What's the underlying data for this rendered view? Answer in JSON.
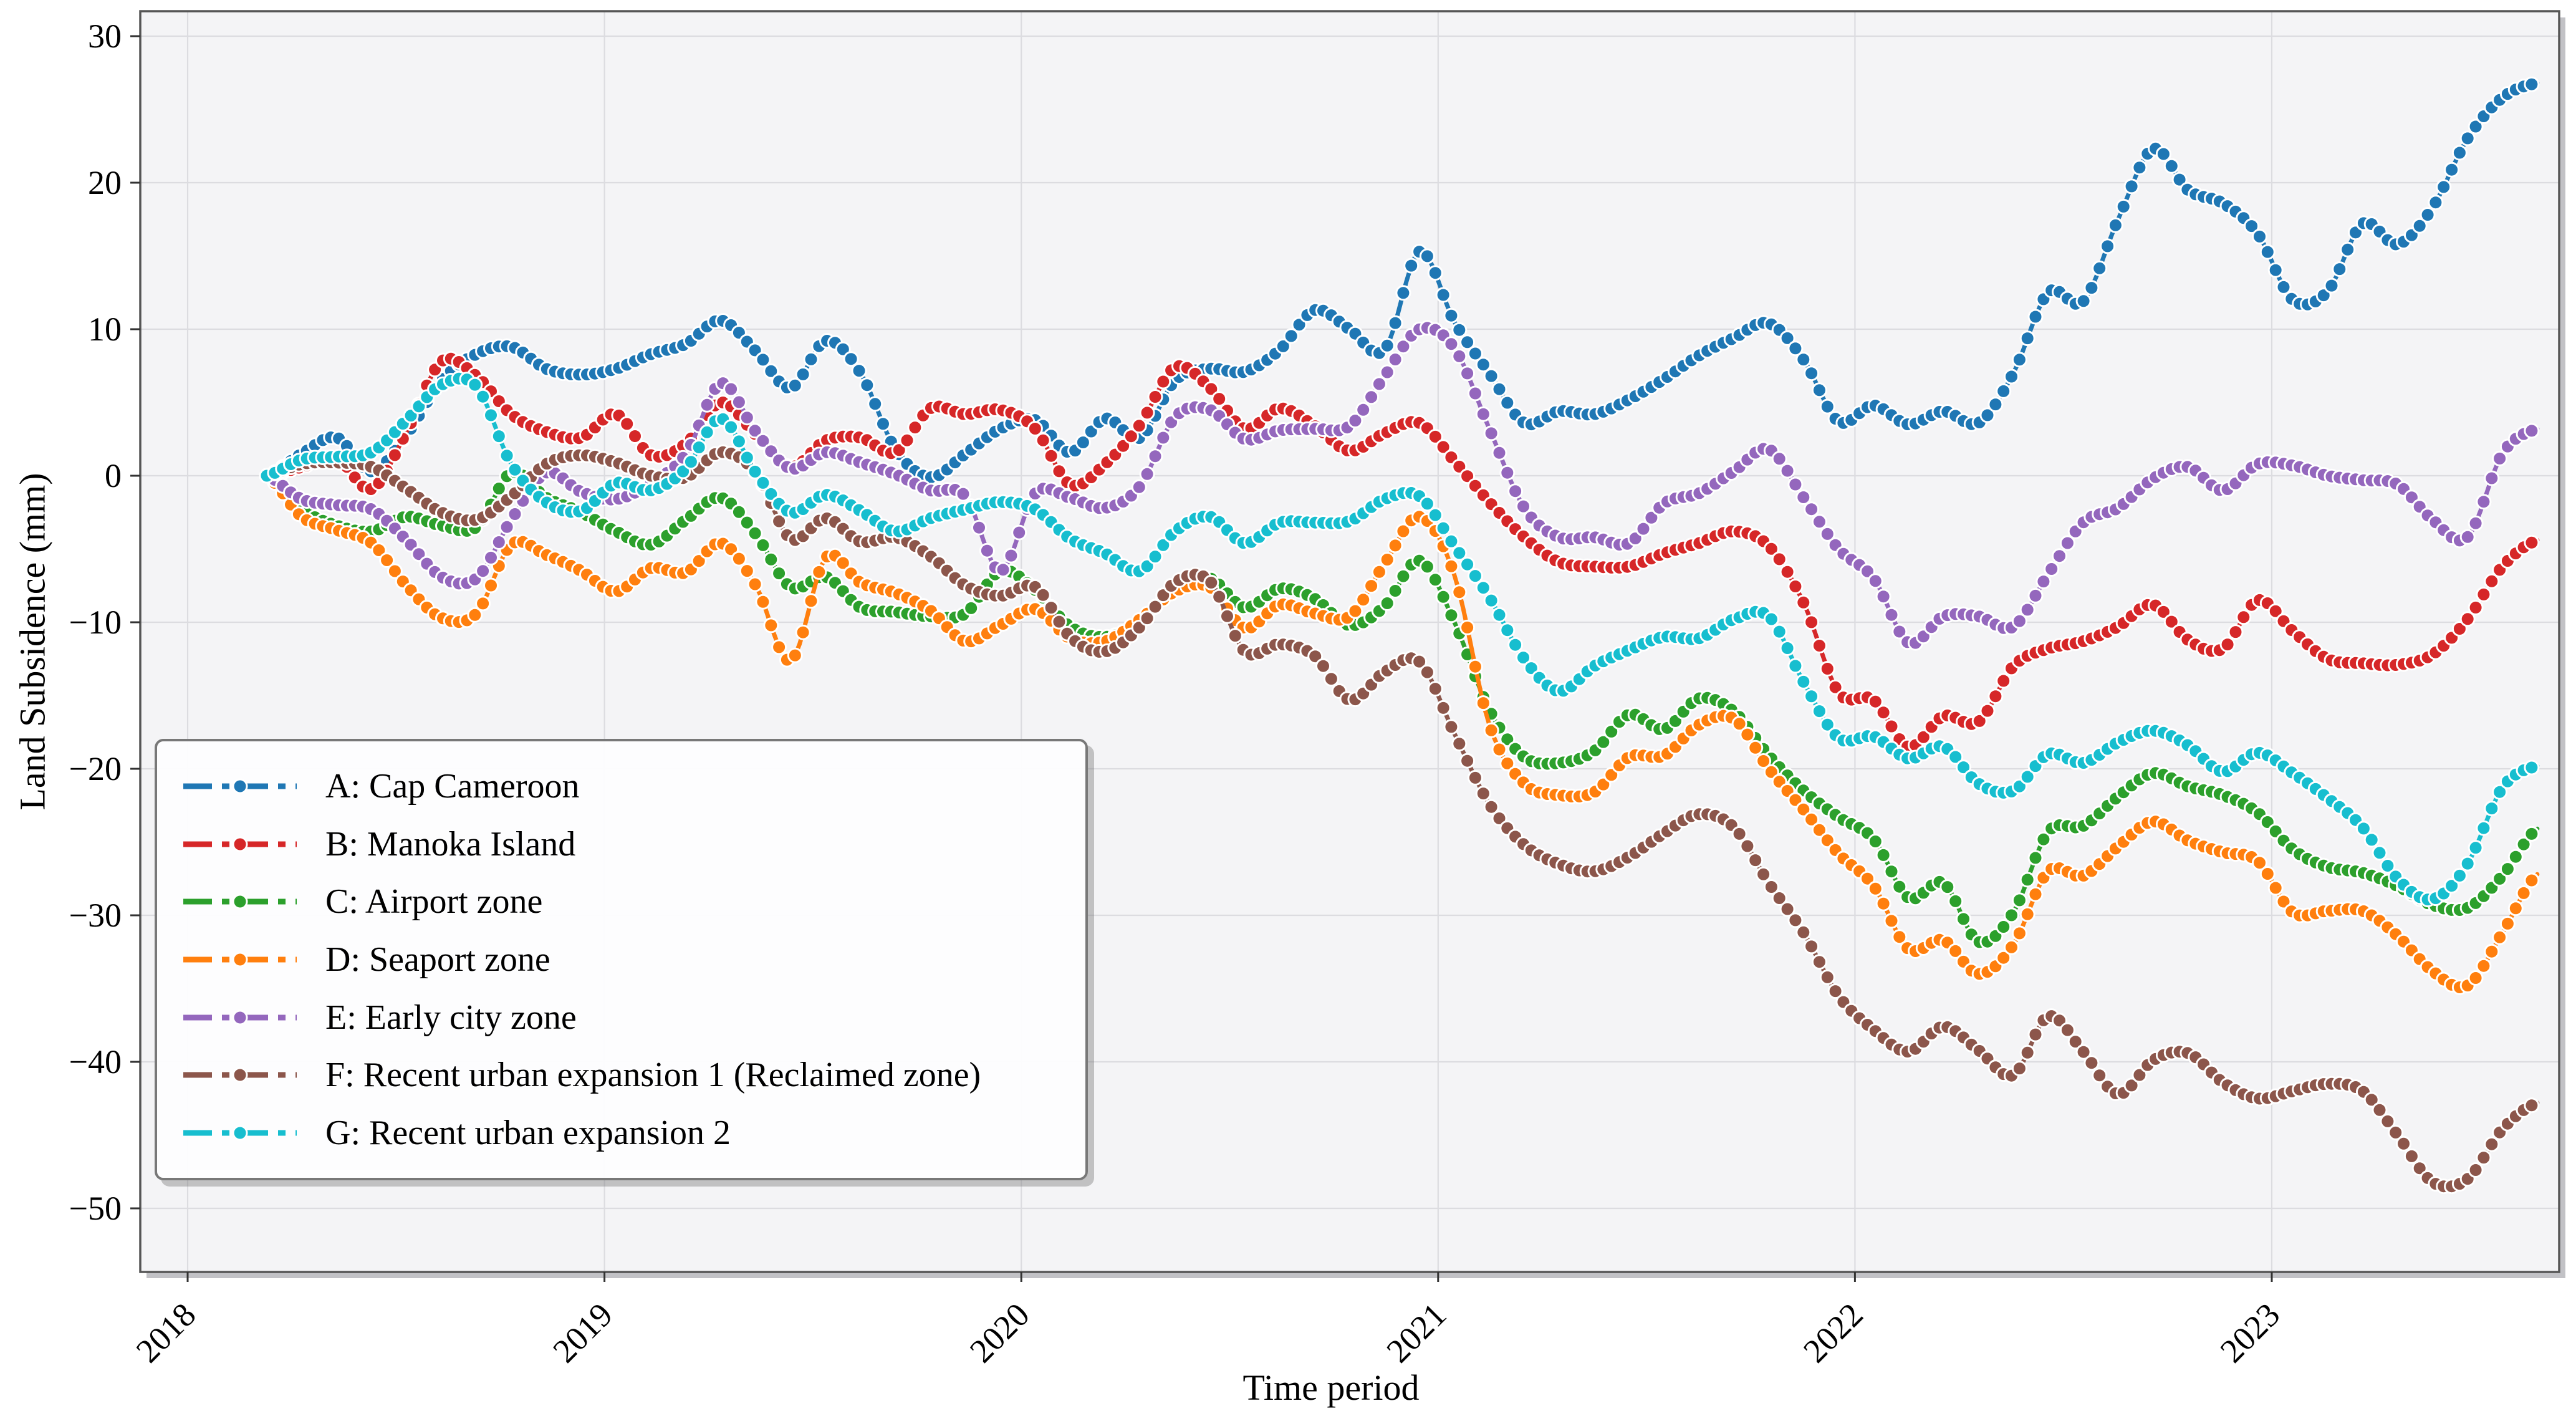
{
  "figure": {
    "bg": "#ffffff",
    "plot_bg": "#f4f4f6",
    "grid_color": "#dcdce0",
    "spine_color": "#565656",
    "shadow_color": "#c2c2c6",
    "tick_color": "#333333"
  },
  "chart_data": {
    "type": "line",
    "title": "",
    "xlabel": "Time period",
    "ylabel": "Land Subsidence (mm)",
    "x_ticks": [
      2018,
      2019,
      2020,
      2021,
      2022,
      2023
    ],
    "y_ticks": [
      30,
      20,
      10,
      0,
      -10,
      -20,
      -30,
      -40,
      -50
    ],
    "xlim": [
      2017.89,
      2023.69
    ],
    "ylim": [
      -54.3,
      31.7
    ],
    "grid": true,
    "legend_position": "lower left",
    "marker": "circle",
    "t_start": 2018.19,
    "t_step": 0.0838,
    "marker_t_step": 0.0192,
    "series": [
      {
        "id": "A",
        "label": "A: Cap Cameroon",
        "color": "#1f77b4",
        "values": [
          0,
          1.5,
          2.6,
          0.3,
          2.8,
          6.5,
          8.3,
          8.8,
          7.3,
          6.9,
          7.3,
          8.3,
          9.0,
          10.6,
          8.5,
          6.0,
          9.2,
          7.0,
          1.8,
          -0.1,
          1.5,
          3.2,
          3.8,
          1.6,
          3.9,
          2.6,
          6.5,
          7.3,
          7.1,
          8.6,
          11.3,
          10.0,
          8.6,
          15.3,
          10.5,
          7.0,
          3.6,
          4.4,
          4.2,
          5.2,
          6.6,
          8.2,
          9.4,
          10.4,
          7.9,
          3.7,
          4.8,
          3.5,
          4.4,
          3.6,
          7.0,
          12.5,
          11.9,
          17.5,
          22.3,
          19.5,
          18.6,
          16.5,
          12.0,
          12.6,
          17.2,
          15.8,
          18.3,
          23.0,
          25.8,
          26.8
        ]
      },
      {
        "id": "B",
        "label": "B: Manoka Island",
        "color": "#d62728",
        "values": [
          0,
          0.6,
          1.2,
          -0.9,
          3.0,
          7.8,
          6.8,
          4.2,
          3.0,
          2.6,
          4.2,
          1.4,
          2.2,
          5.0,
          2.8,
          0.6,
          2.4,
          2.6,
          1.6,
          4.6,
          4.2,
          4.5,
          3.2,
          -0.6,
          0.8,
          3.5,
          7.4,
          6.0,
          3.2,
          4.6,
          3.4,
          1.7,
          2.9,
          3.6,
          1.0,
          -1.8,
          -4.2,
          -5.9,
          -6.2,
          -6.2,
          -5.3,
          -4.6,
          -3.8,
          -4.8,
          -8.7,
          -14.8,
          -15.3,
          -18.5,
          -16.4,
          -16.8,
          -13.0,
          -11.8,
          -11.3,
          -10.3,
          -8.8,
          -11.2,
          -11.8,
          -8.5,
          -10.6,
          -12.5,
          -12.8,
          -12.9,
          -12.2,
          -9.8,
          -6.2,
          -4.4
        ]
      },
      {
        "id": "C",
        "label": "C: Airport zone",
        "color": "#2ca02c",
        "values": [
          0,
          -2.3,
          -3.4,
          -3.8,
          -2.8,
          -3.4,
          -3.5,
          0.2,
          -1.5,
          -2.5,
          -3.8,
          -4.7,
          -3.0,
          -1.5,
          -4.0,
          -7.6,
          -6.9,
          -9.0,
          -9.3,
          -9.6,
          -9.4,
          -6.5,
          -7.8,
          -10.3,
          -11.0,
          -10.0,
          -7.6,
          -7.0,
          -9.0,
          -7.7,
          -8.4,
          -10.2,
          -8.9,
          -5.8,
          -10.0,
          -16.0,
          -19.2,
          -19.6,
          -18.8,
          -16.3,
          -17.3,
          -15.2,
          -16.1,
          -19.1,
          -21.5,
          -23.3,
          -24.8,
          -28.8,
          -27.8,
          -31.8,
          -29.8,
          -24.3,
          -23.9,
          -21.9,
          -20.3,
          -21.2,
          -21.8,
          -23.0,
          -25.5,
          -26.7,
          -27.1,
          -28.0,
          -29.3,
          -29.5,
          -27.3,
          -24.1
        ]
      },
      {
        "id": "D",
        "label": "D: Seaport zone",
        "color": "#ff7f0e",
        "values": [
          0,
          -2.8,
          -3.7,
          -4.6,
          -7.5,
          -9.7,
          -9.4,
          -4.7,
          -5.4,
          -6.5,
          -7.9,
          -6.3,
          -6.6,
          -4.6,
          -7.5,
          -12.6,
          -5.6,
          -7.3,
          -8.0,
          -9.2,
          -11.3,
          -10.2,
          -9.1,
          -11.1,
          -11.3,
          -9.8,
          -7.9,
          -7.6,
          -10.4,
          -8.8,
          -9.4,
          -9.6,
          -6.0,
          -2.8,
          -6.8,
          -17.0,
          -21.0,
          -21.8,
          -21.6,
          -19.2,
          -19.1,
          -17.0,
          -16.6,
          -20.0,
          -22.8,
          -25.8,
          -28.0,
          -32.3,
          -31.7,
          -34.0,
          -32.0,
          -27.0,
          -27.3,
          -25.3,
          -23.6,
          -24.9,
          -25.7,
          -26.3,
          -29.8,
          -29.7,
          -29.7,
          -31.4,
          -33.8,
          -34.8,
          -31.2,
          -27.2
        ]
      },
      {
        "id": "E",
        "label": "E: Early city zone",
        "color": "#9467bd",
        "values": [
          0,
          -1.6,
          -2.0,
          -2.3,
          -4.4,
          -6.9,
          -7.0,
          -3.0,
          0.2,
          -1.1,
          -1.6,
          -0.5,
          1.5,
          6.3,
          3.0,
          0.5,
          1.6,
          0.9,
          0.1,
          -1.0,
          -1.4,
          -6.5,
          -1.2,
          -1.5,
          -2.2,
          -0.7,
          4.0,
          4.5,
          2.5,
          3.1,
          3.2,
          3.4,
          6.8,
          10.0,
          8.7,
          3.2,
          -2.2,
          -4.2,
          -4.2,
          -4.6,
          -1.9,
          -1.2,
          0.3,
          1.8,
          -1.5,
          -5.0,
          -7.0,
          -11.4,
          -9.6,
          -9.6,
          -10.3,
          -6.7,
          -3.2,
          -2.2,
          -0.2,
          0.6,
          -1.0,
          0.8,
          0.7,
          0.0,
          -0.3,
          -0.6,
          -3.0,
          -4.2,
          1.5,
          3.2
        ]
      },
      {
        "id": "F",
        "label": "F: Recent urban expansion 1 (Reclaimed zone)",
        "color": "#8c564b",
        "values": [
          0,
          0.8,
          0.9,
          0.6,
          -0.9,
          -2.5,
          -3.0,
          -1.4,
          0.8,
          1.4,
          0.9,
          0.0,
          -0.1,
          1.6,
          0.2,
          -4.3,
          -2.9,
          -4.5,
          -4.2,
          -5.5,
          -7.5,
          -8.2,
          -7.6,
          -11.0,
          -12.0,
          -10.3,
          -7.3,
          -7.2,
          -12.0,
          -11.5,
          -12.3,
          -15.3,
          -13.4,
          -12.7,
          -17.6,
          -22.4,
          -25.2,
          -26.5,
          -27.0,
          -26.0,
          -24.4,
          -23.1,
          -24.0,
          -27.8,
          -31.2,
          -35.5,
          -37.8,
          -39.3,
          -37.6,
          -39.2,
          -40.9,
          -36.9,
          -39.3,
          -42.2,
          -39.9,
          -39.4,
          -41.4,
          -42.5,
          -42.0,
          -41.5,
          -42.0,
          -45.0,
          -48.2,
          -48.0,
          -44.6,
          -42.8
        ]
      },
      {
        "id": "G",
        "label": "G: Recent urban expansion 2",
        "color": "#17becf",
        "values": [
          0,
          1.1,
          1.3,
          1.6,
          3.8,
          6.2,
          6.1,
          0.8,
          -1.8,
          -2.4,
          -0.5,
          -1.0,
          0.5,
          3.9,
          0.2,
          -2.5,
          -1.3,
          -2.4,
          -3.8,
          -2.9,
          -2.3,
          -1.8,
          -2.3,
          -4.3,
          -5.3,
          -6.5,
          -3.8,
          -2.8,
          -4.6,
          -3.2,
          -3.2,
          -3.1,
          -1.6,
          -1.4,
          -4.8,
          -8.3,
          -12.5,
          -14.7,
          -13.0,
          -11.9,
          -11.0,
          -11.1,
          -9.8,
          -9.6,
          -14.1,
          -17.9,
          -17.8,
          -19.3,
          -18.5,
          -21.0,
          -21.5,
          -19.0,
          -19.6,
          -18.2,
          -17.4,
          -18.4,
          -20.2,
          -18.9,
          -20.3,
          -22.0,
          -24.0,
          -27.5,
          -28.9,
          -26.5,
          -21.3,
          -19.8
        ]
      }
    ]
  }
}
